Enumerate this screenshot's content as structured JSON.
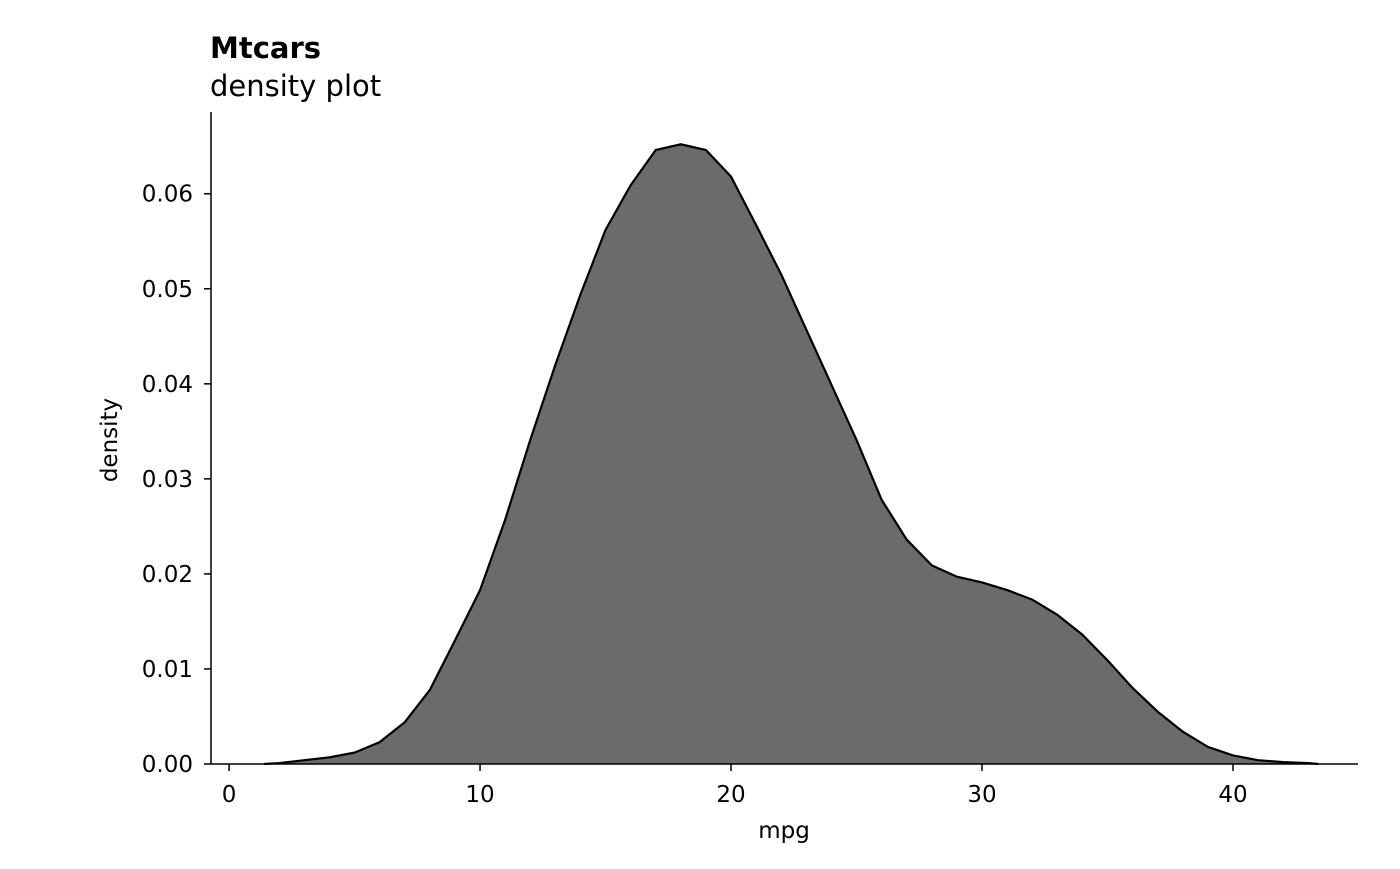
{
  "chart_data": {
    "type": "area",
    "title": "Mtcars",
    "subtitle": "density plot",
    "x_label": "mpg",
    "y_label": "density",
    "color": "#6b6b6b",
    "line_color": "#000000",
    "x": [
      1.4,
      2,
      3,
      4,
      5,
      6,
      7,
      8,
      9,
      10,
      11,
      12,
      13,
      14,
      15,
      16,
      17,
      18,
      19,
      20,
      21,
      22,
      23,
      24,
      25,
      26,
      27,
      28,
      29,
      30,
      31,
      32,
      33,
      34,
      35,
      36,
      37,
      38,
      39,
      40,
      41,
      42,
      43,
      43.4
    ],
    "values": [
      0,
      0.0001,
      0.0004,
      0.0007,
      0.0012,
      0.0023,
      0.0044,
      0.0078,
      0.013,
      0.0183,
      0.0257,
      0.0341,
      0.042,
      0.0494,
      0.0562,
      0.0609,
      0.0646,
      0.0652,
      0.0646,
      0.0618,
      0.0567,
      0.0515,
      0.0457,
      0.0399,
      0.0341,
      0.0278,
      0.0236,
      0.0209,
      0.0197,
      0.0191,
      0.0183,
      0.0173,
      0.0157,
      0.0136,
      0.0109,
      0.008,
      0.0055,
      0.0034,
      0.0018,
      0.0009,
      0.0004,
      0.0002,
      0.0001,
      0
    ],
    "xlim": [
      -0.72,
      44.98
    ],
    "ylim": [
      0,
      0.0686
    ],
    "xticks": [
      0,
      10,
      20,
      30,
      40
    ],
    "yticks": [
      {
        "value": 0,
        "label": "0.00"
      },
      0.01,
      0.02,
      0.03,
      0.04,
      0.05,
      0.06
    ]
  }
}
